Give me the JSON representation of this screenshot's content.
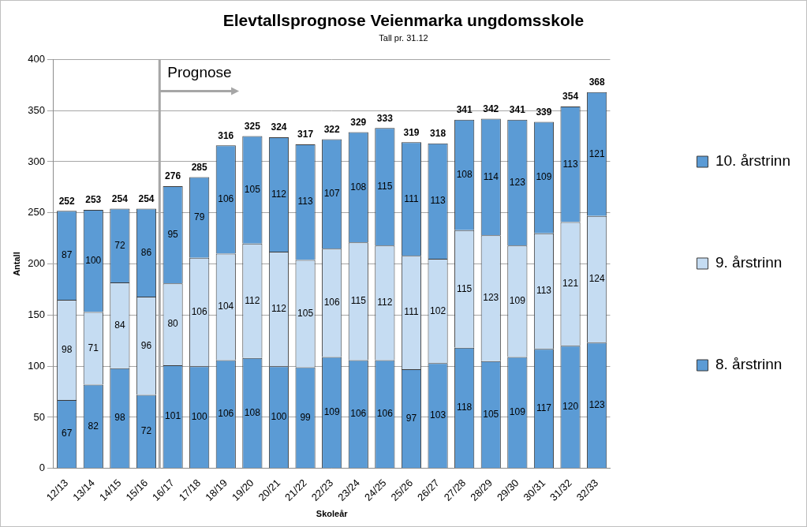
{
  "chart_data": {
    "type": "bar",
    "title": "Elevtallsprognose Veienmarka ungdomsskole",
    "subtitle": "Tall pr. 31.12",
    "x_label": "Skoleår",
    "y_label": "Antall",
    "categories": [
      "12/13",
      "13/14",
      "14/15",
      "15/16",
      "16/17",
      "17/18",
      "18/19",
      "19/20",
      "20/21",
      "21/22",
      "22/23",
      "23/24",
      "24/25",
      "25/26",
      "26/27",
      "27/28",
      "28/29",
      "29/30",
      "30/31",
      "31/32",
      "32/33"
    ],
    "series": [
      {
        "name": "8. årstrinn",
        "color": "#5b9bd5",
        "values": [
          67,
          82,
          98,
          72,
          101,
          100,
          106,
          108,
          100,
          99,
          109,
          106,
          106,
          97,
          103,
          118,
          105,
          109,
          117,
          120,
          123
        ]
      },
      {
        "name": "9. årstrinn",
        "color": "#c5dcf2",
        "values": [
          98,
          71,
          84,
          96,
          80,
          106,
          104,
          112,
          112,
          105,
          106,
          115,
          112,
          111,
          102,
          115,
          123,
          109,
          113,
          121,
          124
        ]
      },
      {
        "name": "10. årstrinn",
        "color": "#5b9bd5",
        "values": [
          87,
          100,
          72,
          86,
          95,
          79,
          106,
          105,
          112,
          113,
          107,
          108,
          115,
          111,
          113,
          108,
          114,
          123,
          109,
          113,
          121
        ]
      }
    ],
    "totals": [
      252,
      253,
      254,
      254,
      276,
      285,
      316,
      325,
      324,
      317,
      322,
      329,
      333,
      319,
      318,
      341,
      342,
      341,
      339,
      354,
      368
    ],
    "annotations": [
      {
        "text": "Prognose",
        "x": "16/17"
      }
    ],
    "stacked": true,
    "data_labels": true,
    "legend": "right",
    "grid": true,
    "ylim": [
      0,
      400
    ],
    "yticks": [
      0,
      50,
      100,
      150,
      200,
      250,
      300,
      350,
      400
    ]
  }
}
